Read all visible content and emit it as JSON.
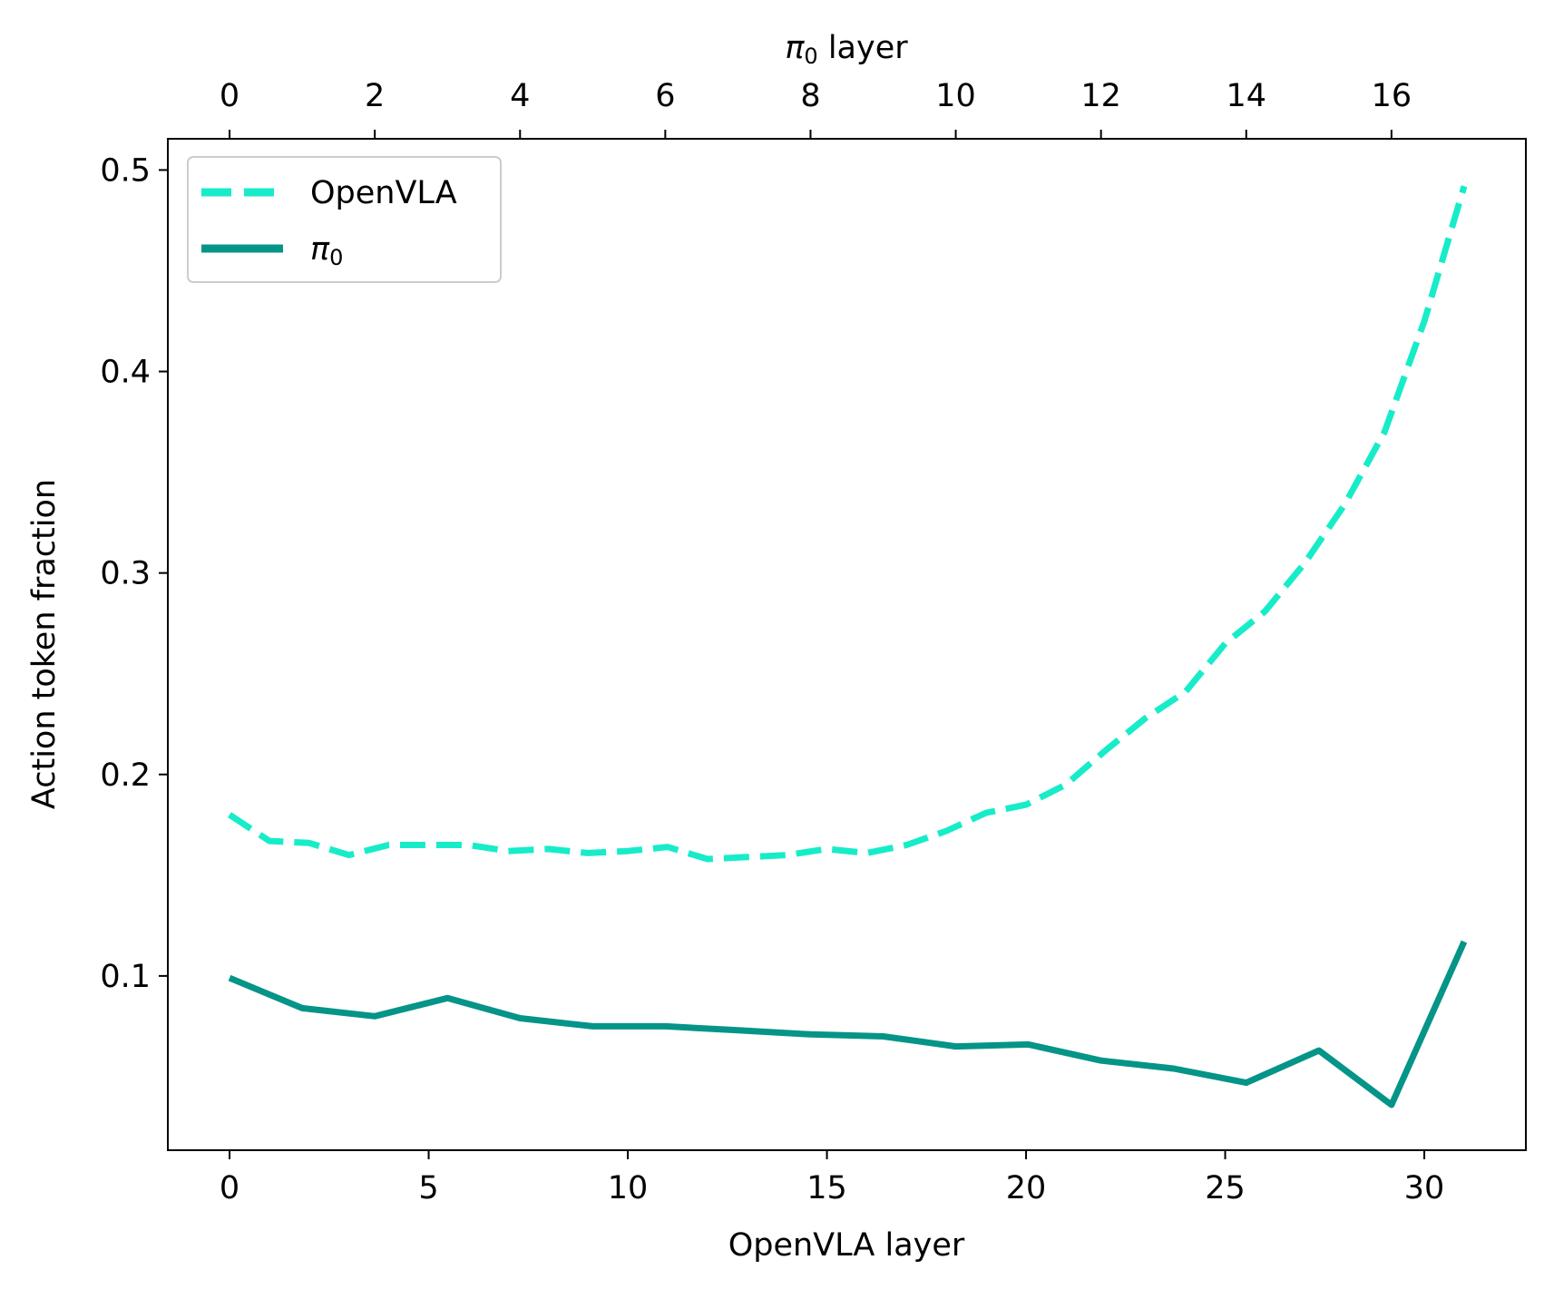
{
  "chart_data": {
    "type": "line",
    "xlabel": "OpenVLA layer",
    "ylabel": "Action token fraction",
    "top_axis_label_symbol": "π",
    "top_axis_label_sub": "0",
    "top_axis_label_rest": " layer",
    "xlim": [
      -1.55,
      32.55
    ],
    "ylim": [
      0.0135,
      0.5155
    ],
    "x_ticks": [
      0,
      5,
      10,
      15,
      20,
      25,
      30
    ],
    "y_ticks": [
      0.1,
      0.2,
      0.3,
      0.4,
      0.5
    ],
    "y_tick_labels": [
      "0.1",
      "0.2",
      "0.3",
      "0.4",
      "0.5"
    ],
    "top_ticks": [
      0,
      2,
      4,
      6,
      8,
      10,
      12,
      14,
      16
    ],
    "top_scale": 1.8235,
    "grid": false,
    "legend_position": "top-left",
    "series": [
      {
        "name": "OpenVLA",
        "color": "#17ecc9",
        "style": "dashed",
        "x": [
          0,
          1,
          2,
          3,
          4,
          5,
          6,
          7,
          8,
          9,
          10,
          11,
          12,
          13,
          14,
          15,
          16,
          17,
          18,
          19,
          20,
          21,
          22,
          23,
          24,
          25,
          26,
          27,
          28,
          29,
          30,
          31
        ],
        "y": [
          0.18,
          0.167,
          0.166,
          0.16,
          0.165,
          0.165,
          0.165,
          0.162,
          0.163,
          0.161,
          0.162,
          0.164,
          0.158,
          0.159,
          0.16,
          0.163,
          0.161,
          0.165,
          0.172,
          0.181,
          0.185,
          0.195,
          0.212,
          0.228,
          0.241,
          0.265,
          0.281,
          0.305,
          0.334,
          0.37,
          0.425,
          0.492
        ]
      },
      {
        "name": "π",
        "name_sub": "0",
        "color": "#059488",
        "style": "solid",
        "x": [
          0,
          1.824,
          3.647,
          5.471,
          7.294,
          9.118,
          10.941,
          12.765,
          14.588,
          16.412,
          18.235,
          20.059,
          21.882,
          23.706,
          25.529,
          27.353,
          29.176,
          31.0
        ],
        "y": [
          0.099,
          0.084,
          0.08,
          0.089,
          0.079,
          0.075,
          0.075,
          0.073,
          0.071,
          0.07,
          0.065,
          0.066,
          0.058,
          0.054,
          0.047,
          0.063,
          0.036,
          0.117
        ]
      }
    ]
  }
}
